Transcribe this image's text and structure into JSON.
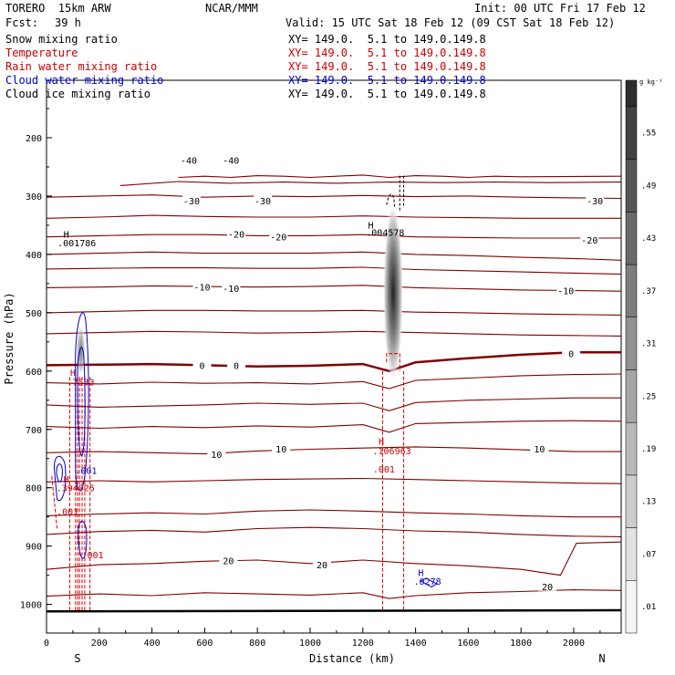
{
  "header": {
    "model": "TORERO  15km ARW",
    "center": "NCAR/MMM",
    "init": "Init: 00 UTC Fri 17 Feb 12",
    "fcst_label": "Fcst:",
    "fcst_value": "39 h",
    "valid": "Valid: 15 UTC Sat 18 Feb 12 (09 CST Sat 18 Feb 12)"
  },
  "fields": [
    {
      "name": "Snow mixing ratio",
      "coords": "XY= 149.0.  5.1 to 149.0.149.8",
      "color": "#000000"
    },
    {
      "name": "Temperature",
      "coords": "XY= 149.0.  5.1 to 149.0.149.8",
      "color": "#cc0000"
    },
    {
      "name": "Rain water mixing ratio",
      "coords": "XY= 149.0.  5.1 to 149.0.149.8",
      "color": "#cc0000"
    },
    {
      "name": "Cloud water mixing ratio",
      "coords": "XY= 149.0.  5.1 to 149.0.149.8",
      "color": "#0000cc"
    },
    {
      "name": "Cloud ice mixing ratio",
      "coords": "XY= 149.0.  5.1 to 149.0.149.8",
      "color": "#000000"
    }
  ],
  "chart_data": {
    "type": "line",
    "xlabel": "Distance (km)",
    "ylabel": "Pressure (hPa)",
    "xlim": [
      0,
      2180
    ],
    "ylim": [
      1020,
      100
    ],
    "x_ticks": [
      0,
      200,
      400,
      600,
      800,
      1000,
      1200,
      1400,
      1600,
      1800,
      2000
    ],
    "y_ticks": [
      200,
      300,
      400,
      500,
      600,
      700,
      800,
      900,
      1000
    ],
    "x_end_labels": {
      "left": "S",
      "right": "N"
    },
    "colorbar": {
      "unit": "g kg⁻¹",
      "levels": [
        ".01",
        ".07",
        ".13",
        ".19",
        ".25",
        ".31",
        ".37",
        ".43",
        ".49",
        ".55"
      ]
    },
    "temperature_labels": [
      {
        "text": "-40",
        "x": 540,
        "p": 238
      },
      {
        "text": "-40",
        "x": 700,
        "p": 238
      },
      {
        "text": "-30",
        "x": 550,
        "p": 308
      },
      {
        "text": "-30",
        "x": 820,
        "p": 308
      },
      {
        "text": "-30",
        "x": 2080,
        "p": 308
      },
      {
        "text": "-20",
        "x": 720,
        "p": 365
      },
      {
        "text": "-20",
        "x": 880,
        "p": 370
      },
      {
        "text": "-20",
        "x": 2060,
        "p": 375
      },
      {
        "text": "-10",
        "x": 590,
        "p": 456
      },
      {
        "text": "-10",
        "x": 700,
        "p": 458
      },
      {
        "text": "-10",
        "x": 1970,
        "p": 462
      },
      {
        "text": "0",
        "x": 590,
        "p": 590
      },
      {
        "text": "0",
        "x": 720,
        "p": 590
      },
      {
        "text": "0",
        "x": 1990,
        "p": 570
      },
      {
        "text": "10",
        "x": 645,
        "p": 743
      },
      {
        "text": "10",
        "x": 890,
        "p": 733
      },
      {
        "text": "10",
        "x": 1870,
        "p": 733
      },
      {
        "text": "20",
        "x": 690,
        "p": 925
      },
      {
        "text": "20",
        "x": 1045,
        "p": 932
      },
      {
        "text": "20",
        "x": 1900,
        "p": 969
      }
    ],
    "maxima_labels": [
      {
        "text": "H",
        "x": 75,
        "p": 365,
        "color": "#000000"
      },
      {
        "text": ".001786",
        "x": 115,
        "p": 380,
        "color": "#000000"
      },
      {
        "text": "H",
        "x": 1230,
        "p": 349,
        "color": "#000000"
      },
      {
        "text": ".004578",
        "x": 1285,
        "p": 362,
        "color": "#000000"
      },
      {
        "text": "H",
        "x": 100,
        "p": 602,
        "color": "#cc0000"
      },
      {
        "text": ".7533",
        "x": 130,
        "p": 618,
        "color": "#cc0000"
      },
      {
        "text": "H",
        "x": 1270,
        "p": 720,
        "color": "#cc0000"
      },
      {
        "text": ".106963",
        "x": 1310,
        "p": 736,
        "color": "#cc0000"
      },
      {
        "text": ".001",
        "x": 1280,
        "p": 768,
        "color": "#cc0000"
      },
      {
        "text": "H",
        "x": 75,
        "p": 785,
        "color": "#cc0000"
      },
      {
        "text": ".394025",
        "x": 110,
        "p": 800,
        "color": "#cc0000"
      },
      {
        "text": ".001",
        "x": 80,
        "p": 840,
        "color": "#cc0000"
      },
      {
        "text": ".001",
        "x": 175,
        "p": 915,
        "color": "#cc0000"
      },
      {
        "text": ".001",
        "x": 150,
        "p": 770,
        "color": "#0000cc"
      },
      {
        "text": "H",
        "x": 1420,
        "p": 945,
        "color": "#0000cc"
      },
      {
        "text": ".0278",
        "x": 1445,
        "p": 960,
        "color": "#0000cc"
      }
    ],
    "series": [
      {
        "name": "Temperature",
        "unit": "°C",
        "contour_interval": 5
      }
    ]
  }
}
